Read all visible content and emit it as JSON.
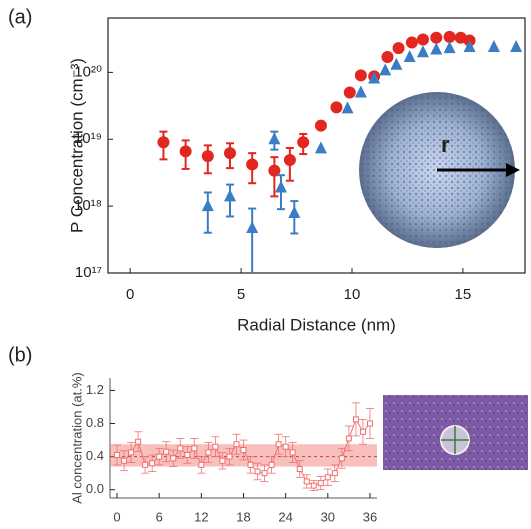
{
  "chart_data": [
    {
      "type": "scatter",
      "panel_label": "(a)",
      "x_label": "Radial Distance (nm)",
      "y_label": "P Concentration (cm⁻³)",
      "log_y": true,
      "xlim": [
        -1,
        17.8
      ],
      "ylim": [
        1e+17,
        6.5e+20
      ],
      "xticks": [
        0,
        5,
        10,
        15
      ],
      "yticks": [
        {
          "value": 1e+17,
          "label": "10¹⁷"
        },
        {
          "value": 1e+18,
          "label": "10¹⁸"
        },
        {
          "value": 1e+19,
          "label": "10¹⁹"
        },
        {
          "value": 1e+20,
          "label": "10²⁰"
        }
      ],
      "inset_label": "r",
      "series": [
        {
          "marker": "circle",
          "color": "#e3261f",
          "x": [
            1.5,
            2.5,
            3.5,
            4.5,
            5.5,
            6.5,
            7.2,
            7.8,
            8.6,
            9.3,
            9.9,
            10.4,
            11.0,
            11.6,
            12.1,
            12.7,
            13.2,
            13.8,
            14.4,
            14.9,
            15.3
          ],
          "values": [
            9e+18,
            6.6e+18,
            5.6e+18,
            6.2e+18,
            4.2e+18,
            3.4e+18,
            4.9e+18,
            9e+18,
            1.6e+19,
            3e+19,
            5e+19,
            9e+19,
            8.7e+19,
            1.7e+20,
            2.3e+20,
            2.8e+20,
            3.1e+20,
            3.3e+20,
            3.4e+20,
            3.3e+20,
            3e+20
          ],
          "errors": [
            4e+18,
            3e+18,
            2.5e+18,
            2.5e+18,
            2e+18,
            2e+18,
            2.5e+18,
            3e+18,
            null,
            null,
            null,
            null,
            null,
            null,
            null,
            null,
            null,
            null,
            null,
            null,
            null
          ]
        },
        {
          "marker": "triangle",
          "color": "#3b7dc4",
          "x": [
            3.5,
            4.5,
            5.5,
            6.5,
            6.8,
            7.4,
            8.6,
            9.8,
            10.4,
            11.0,
            11.5,
            12.0,
            12.6,
            13.2,
            13.8,
            14.4,
            15.3,
            16.4,
            17.4
          ],
          "values": [
            1e+18,
            1.4e+18,
            4.7e+17,
            1e+19,
            1.9e+18,
            7.9e+17,
            7.3e+18,
            2.9e+19,
            5e+19,
            8.1e+19,
            1.07e+20,
            1.3e+20,
            1.7e+20,
            2e+20,
            2.2e+20,
            2.3e+20,
            2.4e+20,
            2.4e+20,
            2.4e+20
          ],
          "errors": [
            6e+17,
            7e+17,
            4.5e+17,
            3e+18,
            1e+18,
            4e+17,
            null,
            null,
            null,
            null,
            null,
            null,
            null,
            null,
            null,
            null,
            null,
            null,
            null
          ]
        }
      ]
    },
    {
      "type": "line",
      "panel_label": "(b)",
      "y_label": "Al concentration (at.%)",
      "xlim": [
        -1,
        37
      ],
      "ylim": [
        -0.1,
        1.35
      ],
      "xticks": [
        0,
        6,
        12,
        18,
        24,
        30,
        36
      ],
      "yticks": [
        {
          "value": 0,
          "label": "0.0"
        },
        {
          "value": 0.4,
          "label": "0.4"
        },
        {
          "value": 0.8,
          "label": "0.8"
        },
        {
          "value": 1.2,
          "label": "1.2"
        }
      ],
      "band": [
        0.28,
        0.55
      ],
      "mean": 0.4,
      "color": "#f07070",
      "x": [
        0,
        1,
        2,
        3,
        4,
        5,
        6,
        7,
        8,
        9,
        10,
        11,
        12,
        13,
        14,
        15,
        16,
        17,
        18,
        19,
        20,
        21,
        22,
        23,
        24,
        25,
        26,
        27,
        28,
        29,
        30,
        31,
        32,
        33,
        34,
        35,
        36
      ],
      "values": [
        0.42,
        0.35,
        0.45,
        0.58,
        0.3,
        0.32,
        0.4,
        0.46,
        0.38,
        0.5,
        0.42,
        0.5,
        0.3,
        0.45,
        0.52,
        0.35,
        0.4,
        0.55,
        0.48,
        0.3,
        0.22,
        0.2,
        0.3,
        0.55,
        0.52,
        0.45,
        0.25,
        0.1,
        0.05,
        0.08,
        0.15,
        0.2,
        0.38,
        0.62,
        0.85,
        0.7,
        0.8
      ],
      "errors": [
        0.12,
        0.12,
        0.12,
        0.12,
        0.1,
        0.1,
        0.1,
        0.12,
        0.1,
        0.12,
        0.1,
        0.12,
        0.1,
        0.12,
        0.12,
        0.1,
        0.1,
        0.12,
        0.12,
        0.1,
        0.1,
        0.1,
        0.1,
        0.12,
        0.12,
        0.12,
        0.1,
        0.08,
        0.06,
        0.08,
        0.1,
        0.1,
        0.12,
        0.15,
        0.2,
        0.15,
        0.18
      ]
    }
  ]
}
